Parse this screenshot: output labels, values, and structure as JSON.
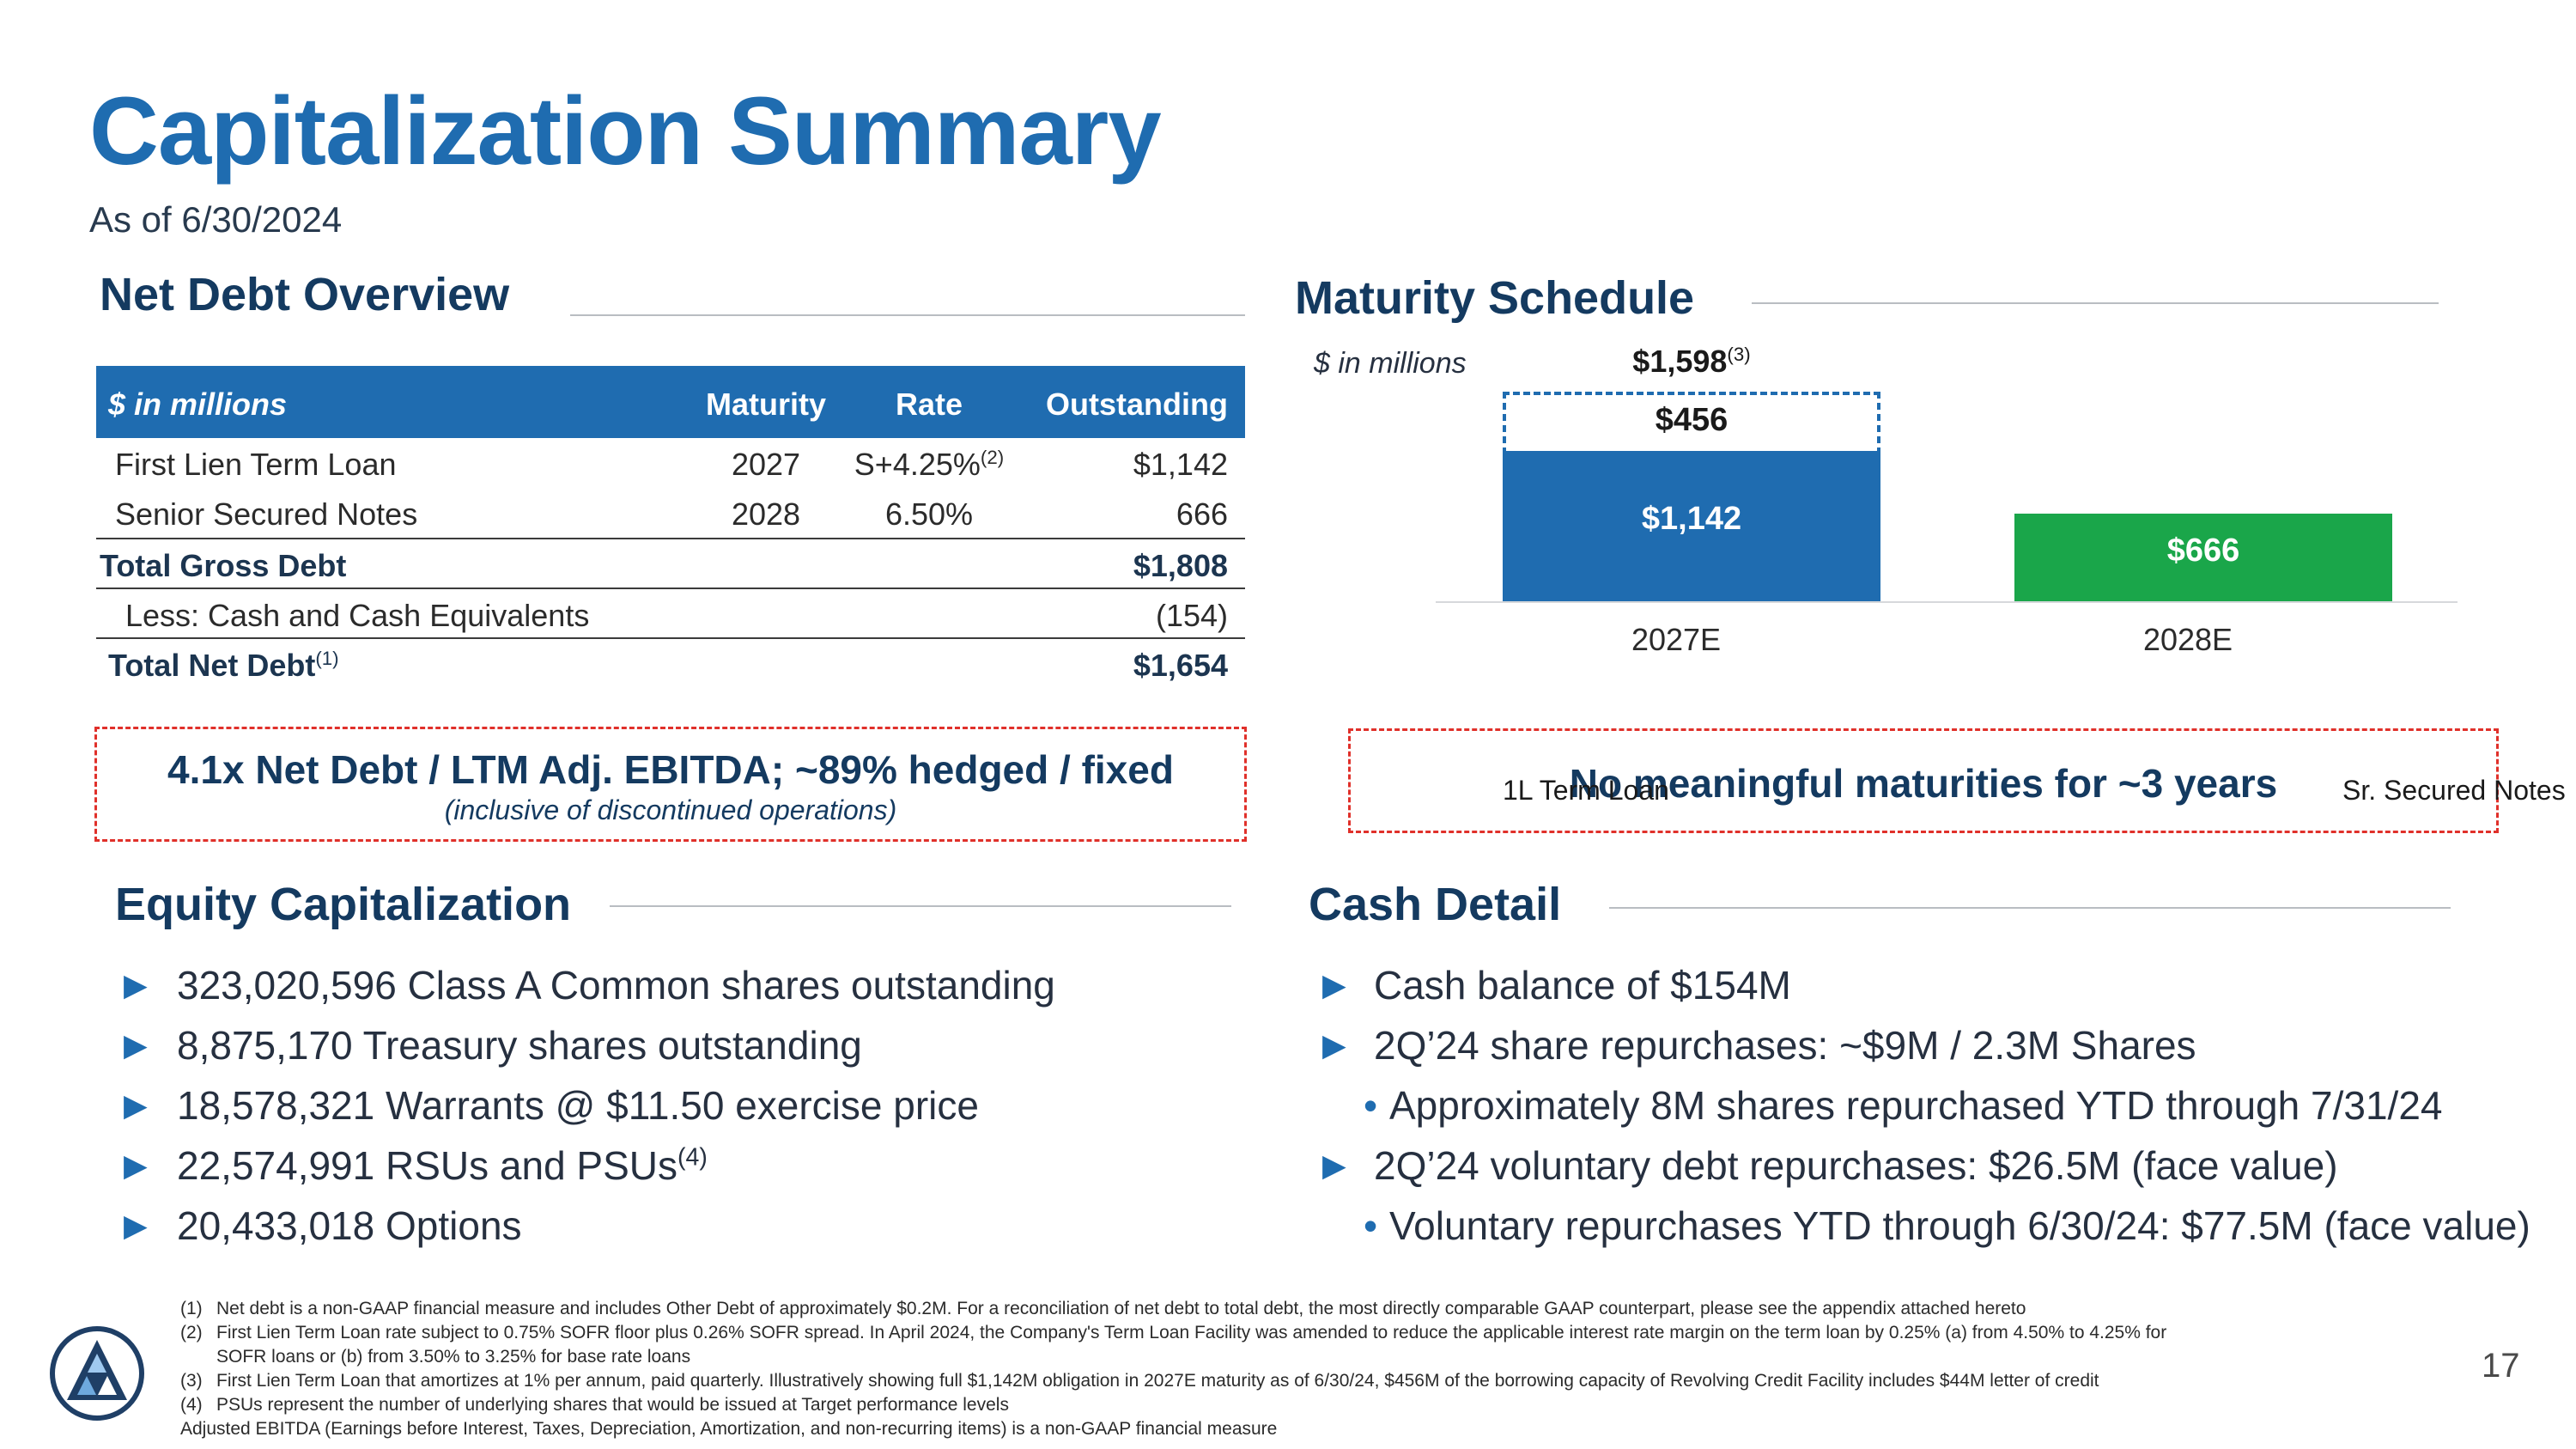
{
  "header": {
    "title": "Capitalization Summary",
    "as_of": "As of 6/30/2024"
  },
  "net_debt": {
    "heading": "Net Debt Overview",
    "columns": {
      "label": "$ in millions",
      "maturity": "Maturity",
      "rate": "Rate",
      "outstanding": "Outstanding"
    },
    "rows": [
      {
        "label": "First Lien Term Loan",
        "maturity": "2027",
        "rate": "S+4.25%",
        "rate_note": "(2)",
        "outstanding": "$1,142"
      },
      {
        "label": "Senior Secured Notes",
        "maturity": "2028",
        "rate": "6.50%",
        "outstanding": "666"
      },
      {
        "label": "Total Gross Debt",
        "outstanding": "$1,808"
      },
      {
        "label": "Less: Cash and Cash Equivalents",
        "outstanding": "(154)"
      },
      {
        "label": "Total Net Debt",
        "label_note": "(1)",
        "outstanding": "$1,654"
      }
    ],
    "callout_main": "4.1x Net Debt / LTM Adj. EBITDA; ~89% hedged / fixed",
    "callout_sub": "(inclusive of discontinued operations)"
  },
  "maturity": {
    "heading": "Maturity Schedule",
    "units": "$ in millions",
    "total_label": "$1,598",
    "total_note": "(3)",
    "callout": "No meaningful maturities for ~3 years"
  },
  "chart_data": {
    "type": "bar",
    "stacked": true,
    "title": "Maturity Schedule",
    "ylabel": "$ in millions",
    "categories": [
      "2027E",
      "2028E"
    ],
    "series": [
      {
        "name": "1L Term Loan",
        "values": [
          1142,
          0
        ],
        "labels": [
          "$1,142",
          ""
        ],
        "color": "#1f6cb0"
      },
      {
        "name": "Sr. Secured Notes",
        "values": [
          0,
          666
        ],
        "labels": [
          "",
          "$666"
        ],
        "color": "#1aa64a"
      },
      {
        "name": "Revolving Credit Facility capacity",
        "values": [
          456,
          0
        ],
        "labels": [
          "$456",
          ""
        ],
        "color": "#1f6cb0",
        "style": "dashed-outline"
      }
    ],
    "totals": [
      "$1,598",
      ""
    ],
    "legend": [
      "1L Term Loan",
      "Sr. Secured Notes"
    ],
    "ylim": [
      0,
      1700
    ]
  },
  "equity": {
    "heading": "Equity Capitalization",
    "items": [
      {
        "text": "323,020,596 Class A Common shares outstanding",
        "note": ""
      },
      {
        "text": "8,875,170 Treasury shares outstanding",
        "note": ""
      },
      {
        "text": "18,578,321 Warrants @ $11.50 exercise price",
        "note": ""
      },
      {
        "text": "22,574,991 RSUs and PSUs",
        "note": "(4)"
      },
      {
        "text": "20,433,018 Options",
        "note": ""
      }
    ]
  },
  "cash": {
    "heading": "Cash Detail",
    "items": [
      {
        "text": "Cash balance of $154M"
      },
      {
        "text": "2Q’24 share repurchases: ~$9M / 2.3M Shares"
      },
      {
        "text": "Approximately 8M shares repurchased YTD through 7/31/24"
      },
      {
        "text": "2Q’24 voluntary debt repurchases: $26.5M (face value)"
      },
      {
        "text": "Voluntary repurchases YTD through 6/30/24: $77.5M (face value)"
      }
    ]
  },
  "footnotes": [
    {
      "num": "(1)",
      "text": "Net debt is a non-GAAP financial measure and includes Other Debt of approximately $0.2M. For a reconciliation of net debt to total debt, the most directly comparable GAAP counterpart, please see the appendix attached hereto"
    },
    {
      "num": "(2)",
      "text": "First Lien Term Loan rate subject to 0.75% SOFR floor plus 0.26% SOFR spread. In April 2024, the Company's Term Loan Facility was amended to reduce the applicable interest rate margin on the term loan by 0.25% (a) from 4.50% to 4.25% for"
    },
    {
      "num": "",
      "text": "SOFR loans or (b) from 3.50% to 3.25% for base rate loans"
    },
    {
      "num": "(3)",
      "text": "First Lien Term Loan that amortizes at 1% per annum, paid quarterly. Illustratively showing full $1,142M obligation in 2027E maturity as of 6/30/24, $456M of the borrowing capacity of Revolving Credit Facility includes $44M letter of credit"
    },
    {
      "num": "(4)",
      "text": "PSUs represent the number of underlying shares that would be issued at Target performance levels"
    },
    {
      "num": "",
      "text": "Adjusted EBITDA (Earnings before Interest, Taxes, Depreciation, Amortization, and non-recurring items) is a non-GAAP financial measure"
    }
  ],
  "page_number": "17",
  "colors": {
    "brand_blue": "#1f6cb0",
    "navy": "#143a60",
    "green": "#1aa64a",
    "callout_red": "#e0302a"
  }
}
